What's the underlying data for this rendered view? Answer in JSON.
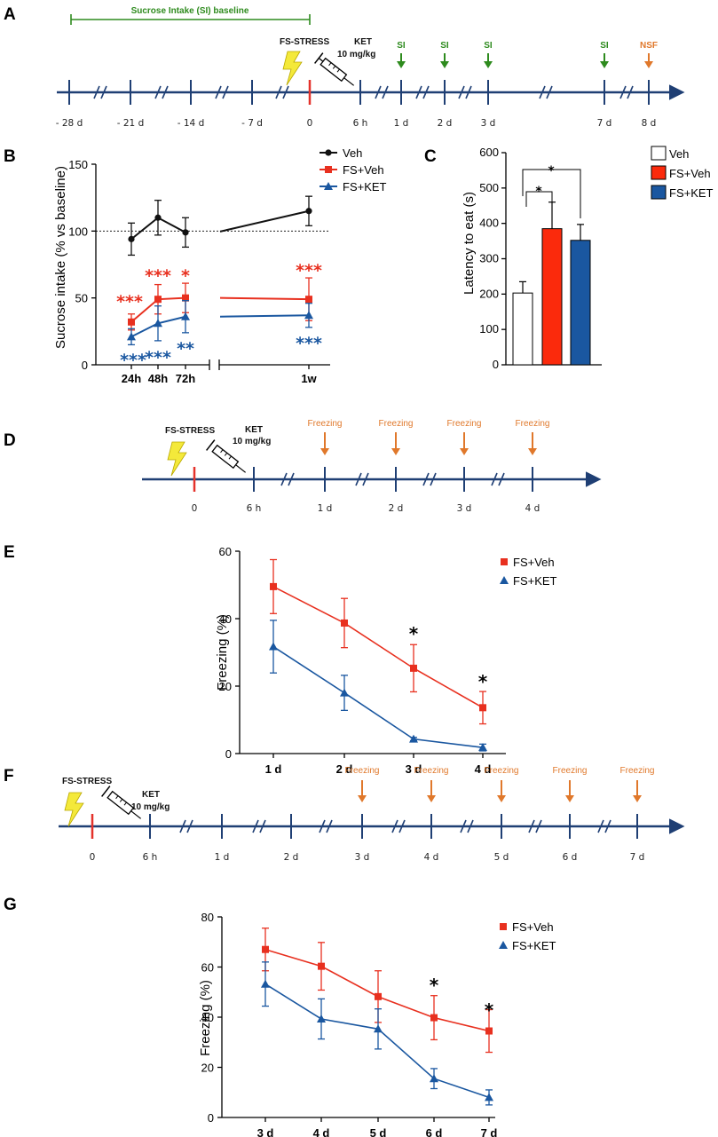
{
  "panels": {
    "A": "A",
    "B": "B",
    "C": "C",
    "D": "D",
    "E": "E",
    "F": "F",
    "G": "G"
  },
  "colors": {
    "veh": "#111111",
    "fs_veh": "#e8301f",
    "fs_ket": "#1a57a0",
    "timeline": "#1f3f74",
    "green": "#2e8b1e",
    "orange": "#e0782b",
    "bolt": "#f4e93a"
  },
  "timeline_a": {
    "baseline_label": "Sucrose Intake (SI) baseline",
    "stress_label": "FS-STRESS",
    "ket_label": "KET",
    "ket_dose": "10 mg/kg",
    "labels": [
      "- 28 d",
      "- 21 d",
      "- 14 d",
      "- 7 d",
      "0",
      "6 h",
      "1 d",
      "2 d",
      "3 d",
      "7 d",
      "8 d"
    ],
    "events": [
      {
        "label": "SI",
        "at": "1 d"
      },
      {
        "label": "SI",
        "at": "2 d"
      },
      {
        "label": "SI",
        "at": "3 d"
      },
      {
        "label": "SI",
        "at": "7 d"
      },
      {
        "label": "NSF",
        "at": "8 d"
      }
    ]
  },
  "timeline_d": {
    "stress_label": "FS-STRESS",
    "ket_label": "KET",
    "ket_dose": "10 mg/kg",
    "labels": [
      "0",
      "6 h",
      "1 d",
      "2 d",
      "3 d",
      "4 d"
    ],
    "events": [
      "Freezing",
      "Freezing",
      "Freezing",
      "Freezing"
    ]
  },
  "timeline_f": {
    "stress_label": "FS-STRESS",
    "ket_label": "KET",
    "ket_dose": "10 mg/kg",
    "labels": [
      "0",
      "6 h",
      "1 d",
      "2 d",
      "3 d",
      "4 d",
      "5 d",
      "6 d",
      "7 d"
    ],
    "events": [
      "Freezing",
      "Freezing",
      "Freezing",
      "Freezing",
      "Freezing"
    ]
  },
  "chart_data": [
    {
      "id": "B",
      "type": "line",
      "ylabel": "Sucrose intake (% vs baseline)",
      "ylim": [
        0,
        150
      ],
      "yticks": [
        0,
        50,
        100,
        150
      ],
      "x": [
        "24h",
        "48h",
        "72h",
        "1w"
      ],
      "reference_line": 100,
      "series": [
        {
          "name": "Veh",
          "marker": "circle",
          "values": [
            94,
            110,
            99,
            115
          ],
          "errors": [
            12,
            13,
            11,
            11
          ]
        },
        {
          "name": "FS+Veh",
          "marker": "square",
          "values": [
            32,
            49,
            50,
            49
          ],
          "errors": [
            6,
            11,
            11,
            16
          ]
        },
        {
          "name": "FS+KET",
          "marker": "triangle",
          "values": [
            21,
            31,
            36,
            37
          ],
          "errors": [
            6,
            13,
            12,
            9
          ]
        }
      ],
      "significance": {
        "FS+Veh": [
          "***",
          "***",
          "*",
          "***"
        ],
        "FS+KET": [
          "***",
          "***",
          "**",
          "***"
        ]
      },
      "legend": [
        "Veh",
        "FS+Veh",
        "FS+KET"
      ]
    },
    {
      "id": "C",
      "type": "bar",
      "ylabel": "Latency to eat (s)",
      "ylim": [
        0,
        600
      ],
      "yticks": [
        0,
        100,
        200,
        300,
        400,
        500,
        600
      ],
      "categories": [
        "Veh",
        "FS+Veh",
        "FS+KET"
      ],
      "values": [
        203,
        385,
        352
      ],
      "errors": [
        32,
        75,
        45
      ],
      "significance": [
        "*",
        "*"
      ],
      "legend": [
        "Veh",
        "FS+Veh",
        "FS+KET"
      ]
    },
    {
      "id": "E",
      "type": "line",
      "ylabel": "Freezing (%)",
      "ylim": [
        0,
        60
      ],
      "yticks": [
        0,
        20,
        40,
        60
      ],
      "x": [
        "1 d",
        "2 d",
        "3 d",
        "4 d"
      ],
      "series": [
        {
          "name": "FS+Veh",
          "marker": "square",
          "values": [
            49.5,
            38.7,
            25.3,
            13.6
          ],
          "errors": [
            8,
            7.3,
            7,
            4.8
          ]
        },
        {
          "name": "FS+KET",
          "marker": "triangle",
          "values": [
            31.7,
            18,
            4.3,
            1.8
          ],
          "errors": [
            7.8,
            5.2,
            0.5,
            1
          ]
        }
      ],
      "significance": [
        "",
        "",
        "*",
        "*"
      ],
      "legend": [
        "FS+Veh",
        "FS+KET"
      ]
    },
    {
      "id": "G",
      "type": "line",
      "ylabel": "Freezing (%)",
      "ylim": [
        0,
        80
      ],
      "yticks": [
        0,
        20,
        40,
        60,
        80
      ],
      "x": [
        "3 d",
        "4 d",
        "5 d",
        "6 d",
        "7 d"
      ],
      "series": [
        {
          "name": "FS+Veh",
          "marker": "square",
          "values": [
            67,
            60.3,
            48.2,
            39.8,
            34.5
          ],
          "errors": [
            8.5,
            9.5,
            10.3,
            8.8,
            8.5
          ]
        },
        {
          "name": "FS+KET",
          "marker": "triangle",
          "values": [
            53.2,
            39.3,
            35.3,
            15.5,
            8
          ],
          "errors": [
            8.8,
            8,
            8,
            4,
            3
          ]
        }
      ],
      "significance": [
        "",
        "",
        "",
        "*",
        "*"
      ],
      "legend": [
        "FS+Veh",
        "FS+KET"
      ]
    }
  ]
}
